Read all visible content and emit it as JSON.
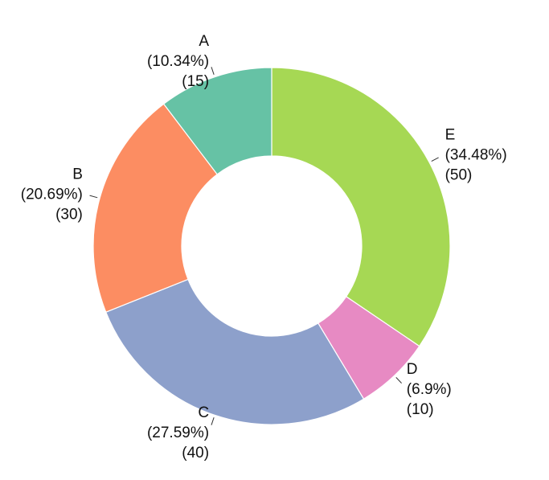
{
  "chart_data": {
    "type": "pie",
    "donut": true,
    "start": "12 o'clock",
    "direction": "clockwise",
    "order": [
      "E",
      "D",
      "C",
      "B",
      "A"
    ],
    "slices": [
      {
        "label": "A",
        "value": 15,
        "percent": "(10.34%)",
        "count": "(15)",
        "color": "#66c2a5"
      },
      {
        "label": "B",
        "value": 30,
        "percent": "(20.69%)",
        "count": "(30)",
        "color": "#fc8d62"
      },
      {
        "label": "C",
        "value": 40,
        "percent": "(27.59%)",
        "count": "(40)",
        "color": "#8da0cb"
      },
      {
        "label": "D",
        "value": 10,
        "percent": "(6.9%)",
        "count": "(10)",
        "color": "#e78ac3"
      },
      {
        "label": "E",
        "value": 50,
        "percent": "(34.48%)",
        "count": "(50)",
        "color": "#a6d854"
      }
    ]
  }
}
